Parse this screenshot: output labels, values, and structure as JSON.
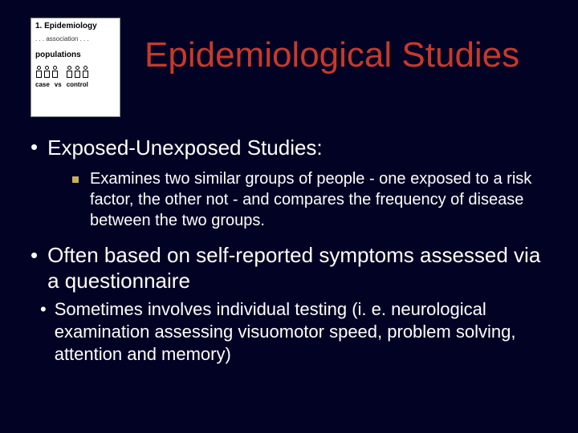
{
  "thumbnail": {
    "title": "1.  Epidemiology",
    "assoc": ". . . association . . .",
    "populations": "populations",
    "case": "case",
    "vs": "vs",
    "control": "control"
  },
  "title": "Epidemiological Studies",
  "bullet1": "Exposed-Unexposed Studies:",
  "sub1": "Examines two similar groups of people - one exposed to a risk factor, the other not - and compares the frequency of disease between the two groups.",
  "bullet2": "Often based on self-reported symptoms assessed via a questionnaire",
  "bullet3": "Sometimes involves individual testing (i. e. neurological examination assessing visuomotor speed, problem solving, attention and memory)",
  "colors": {
    "background": "#020224",
    "title": "#c8392a",
    "sub_bullet": "#c8b058",
    "text": "#ffffff"
  }
}
